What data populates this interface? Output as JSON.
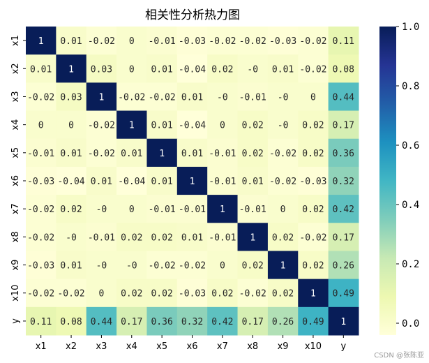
{
  "chart_data": {
    "type": "heatmap",
    "title": "相关性分析热力图",
    "row_labels": [
      "x1",
      "x2",
      "x3",
      "x4",
      "x5",
      "x6",
      "x7",
      "x8",
      "x9",
      "x10",
      "y"
    ],
    "col_labels": [
      "x1",
      "x2",
      "x3",
      "x4",
      "x5",
      "x6",
      "x7",
      "x8",
      "x9",
      "x10",
      "y"
    ],
    "values": [
      [
        1,
        0.01,
        -0.02,
        0,
        -0.01,
        -0.03,
        -0.02,
        -0.02,
        -0.03,
        -0.02,
        0.11
      ],
      [
        0.01,
        1,
        0.03,
        0,
        0.01,
        -0.04,
        0.02,
        0,
        0.01,
        -0.02,
        0.08
      ],
      [
        -0.02,
        0.03,
        1,
        -0.02,
        -0.02,
        0.01,
        0,
        -0.01,
        0,
        0,
        0.44
      ],
      [
        0,
        0,
        -0.02,
        1,
        0.01,
        -0.04,
        0,
        0.02,
        0,
        0.02,
        0.17
      ],
      [
        -0.01,
        0.01,
        -0.02,
        0.01,
        1,
        0.01,
        -0.01,
        0.02,
        -0.02,
        0.02,
        0.36
      ],
      [
        -0.03,
        -0.04,
        0.01,
        -0.04,
        0.01,
        1,
        -0.01,
        0.01,
        -0.02,
        -0.03,
        0.32
      ],
      [
        -0.02,
        0.02,
        0,
        0,
        -0.01,
        -0.01,
        1,
        -0.01,
        0,
        0.02,
        0.42
      ],
      [
        -0.02,
        0,
        -0.01,
        0.02,
        0.02,
        0.01,
        -0.01,
        1,
        0.02,
        -0.02,
        0.17
      ],
      [
        -0.03,
        0.01,
        0,
        0,
        -0.02,
        -0.02,
        0,
        0.02,
        1,
        0.02,
        0.26
      ],
      [
        -0.02,
        -0.02,
        0,
        0.02,
        0.02,
        -0.03,
        0.02,
        -0.02,
        0.02,
        1,
        0.49
      ],
      [
        0.11,
        0.08,
        0.44,
        0.17,
        0.36,
        0.32,
        0.42,
        0.17,
        0.26,
        0.49,
        1
      ]
    ],
    "colormap": "YlGnBu",
    "colorbar": {
      "range": [
        -0.04,
        1.0
      ],
      "ticks": [
        "0.0",
        "0.2",
        "0.4",
        "0.6",
        "0.8",
        "1.0"
      ]
    },
    "annotations": true
  },
  "watermark": "CSDN @张陈亚"
}
